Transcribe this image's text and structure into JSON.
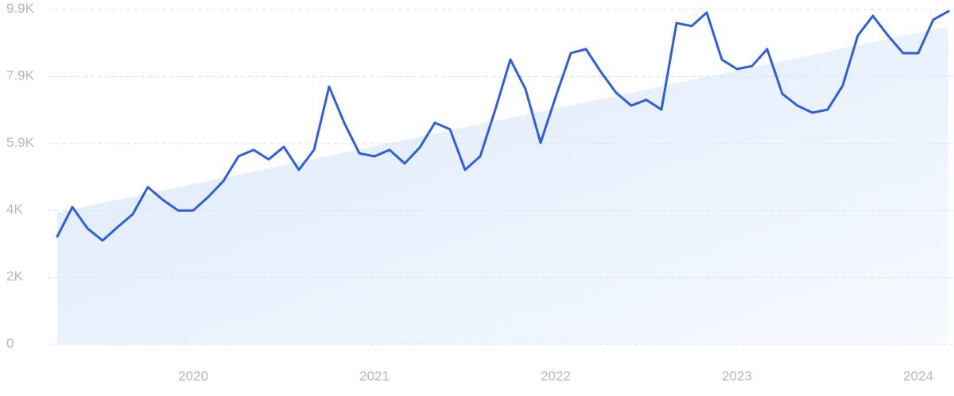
{
  "chart_data": {
    "type": "line",
    "categories": [
      null,
      null,
      null,
      null,
      null,
      null,
      null,
      null,
      null,
      "2020",
      null,
      null,
      null,
      null,
      null,
      null,
      null,
      null,
      null,
      null,
      null,
      "2021",
      null,
      null,
      null,
      null,
      null,
      null,
      null,
      null,
      null,
      null,
      null,
      "2022",
      null,
      null,
      null,
      null,
      null,
      null,
      null,
      null,
      null,
      null,
      null,
      "2023",
      null,
      null,
      null,
      null,
      null,
      null,
      null,
      null,
      null,
      null,
      null,
      "2024",
      null,
      null
    ],
    "series": [
      {
        "color": "#2f5fdc",
        "values": [
          3190,
          4060,
          3430,
          3070,
          3470,
          3850,
          4650,
          4270,
          3960,
          3960,
          4360,
          4830,
          5560,
          5750,
          5470,
          5840,
          5160,
          5750,
          7620,
          6550,
          5650,
          5560,
          5750,
          5350,
          5820,
          6550,
          6360,
          5160,
          5560,
          6940,
          8420,
          7550,
          5960,
          7320,
          8610,
          8730,
          8050,
          7440,
          7060,
          7230,
          6940,
          9500,
          9410,
          9810,
          8420,
          8140,
          8230,
          8730,
          7410,
          7060,
          6850,
          6940,
          7650,
          9130,
          9710,
          9130,
          8610,
          8610,
          9600,
          9850
        ]
      }
    ],
    "trend": [
      3900,
      9400
    ],
    "ylim": [
      0,
      9900
    ],
    "yticks": [
      0,
      {
        "value": 1980,
        "label": "2K"
      },
      {
        "value": 3960,
        "label": "4K"
      },
      {
        "value": 5940,
        "label": "5.9K"
      },
      {
        "value": 7920,
        "label": "7.9K"
      },
      {
        "value": 9900,
        "label": "9.9K"
      }
    ],
    "grid": true
  }
}
